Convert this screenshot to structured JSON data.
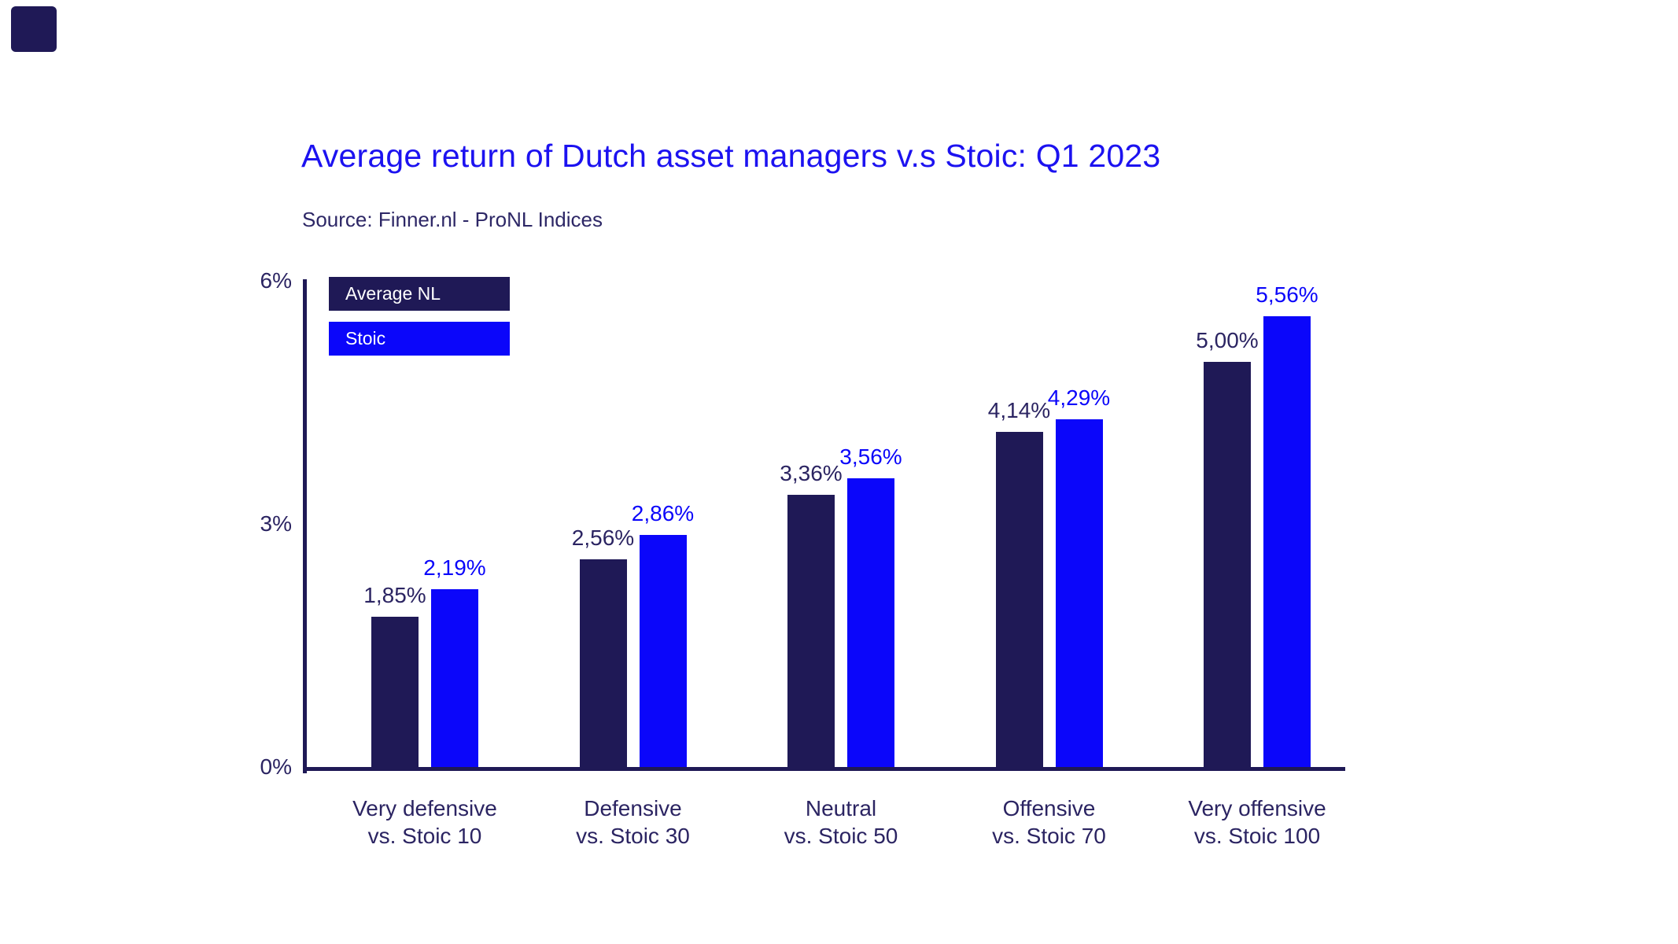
{
  "source": "Source: Finner.nl - ProNL Indices",
  "colors": {
    "navy": "#1f1956",
    "blue": "#0b06fa",
    "title_blue": "#1c12f0",
    "text_navy": "#2b2462",
    "background": "#ffffff",
    "legend_text": "#ffffff"
  },
  "icons": {
    "logo_mark": "navy-rounded-square"
  },
  "chart_data": {
    "type": "bar",
    "title": "Average return of Dutch asset managers v.s Stoic: Q1 2023",
    "subtitle": "Source: Finner.nl - ProNL Indices",
    "categories": [
      {
        "label": "Very defensive",
        "sublabel": "vs. Stoic 10"
      },
      {
        "label": "Defensive",
        "sublabel": "vs. Stoic 30"
      },
      {
        "label": "Neutral",
        "sublabel": "vs. Stoic 50"
      },
      {
        "label": "Offensive",
        "sublabel": "vs. Stoic 70"
      },
      {
        "label": "Very offensive",
        "sublabel": "vs. Stoic 100"
      }
    ],
    "series": [
      {
        "name": "Average NL",
        "color_key": "navy",
        "values": [
          1.85,
          2.56,
          3.36,
          4.14,
          5.0
        ],
        "labels": [
          "1,85%",
          "2,56%",
          "3,36%",
          "4,14%",
          "5,00%"
        ]
      },
      {
        "name": "Stoic",
        "color_key": "blue",
        "values": [
          2.19,
          2.86,
          3.56,
          4.29,
          5.56
        ],
        "labels": [
          "2,19%",
          "2,86%",
          "3,56%",
          "4,29%",
          "5,56%"
        ]
      }
    ],
    "xlabel": "",
    "ylabel": "",
    "ylim": [
      0,
      6
    ],
    "y_axis": {
      "ticks": [
        {
          "value": 0,
          "label": "0%"
        },
        {
          "value": 3,
          "label": "3%"
        },
        {
          "value": 6,
          "label": "6%"
        }
      ]
    },
    "grid": false,
    "legend_position": "top-left-inside",
    "value_labels": "above-bars"
  }
}
